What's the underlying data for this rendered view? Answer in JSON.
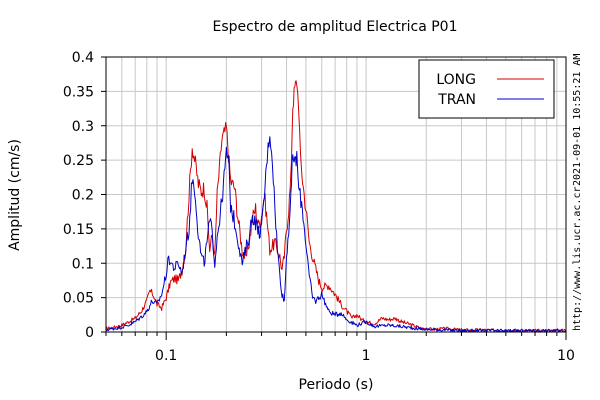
{
  "chart_data": {
    "type": "line",
    "title": "Espectro de amplitud Electrica P01",
    "xlabel": "Periodo (s)",
    "ylabel": "Amplitud (cm/s)",
    "x_scale": "log",
    "xlim": [
      0.05,
      10
    ],
    "ylim": [
      0,
      0.4
    ],
    "xticks": [
      {
        "v": 0.1,
        "label": "0.1"
      },
      {
        "v": 1,
        "label": "1"
      },
      {
        "v": 10,
        "label": "10"
      }
    ],
    "yticks": [
      {
        "v": 0,
        "label": "0"
      },
      {
        "v": 0.05,
        "label": "0.05"
      },
      {
        "v": 0.1,
        "label": "0.1"
      },
      {
        "v": 0.15,
        "label": "0.15"
      },
      {
        "v": 0.2,
        "label": "0.2"
      },
      {
        "v": 0.25,
        "label": "0.25"
      },
      {
        "v": 0.3,
        "label": "0.3"
      },
      {
        "v": 0.35,
        "label": "0.35"
      },
      {
        "v": 0.4,
        "label": "0.4"
      }
    ],
    "grid": true,
    "legend_position": "top-right",
    "series": [
      {
        "name": "LONG",
        "color": "#d40000",
        "points": [
          [
            0.05,
            0.005
          ],
          [
            0.055,
            0.007
          ],
          [
            0.06,
            0.01
          ],
          [
            0.065,
            0.015
          ],
          [
            0.07,
            0.02
          ],
          [
            0.075,
            0.03
          ],
          [
            0.08,
            0.045
          ],
          [
            0.083,
            0.06
          ],
          [
            0.087,
            0.052
          ],
          [
            0.09,
            0.04
          ],
          [
            0.095,
            0.035
          ],
          [
            0.1,
            0.05
          ],
          [
            0.105,
            0.072
          ],
          [
            0.11,
            0.078
          ],
          [
            0.115,
            0.075
          ],
          [
            0.12,
            0.09
          ],
          [
            0.125,
            0.12
          ],
          [
            0.13,
            0.2
          ],
          [
            0.135,
            0.27
          ],
          [
            0.14,
            0.245
          ],
          [
            0.145,
            0.215
          ],
          [
            0.15,
            0.205
          ],
          [
            0.155,
            0.21
          ],
          [
            0.16,
            0.18
          ],
          [
            0.165,
            0.12
          ],
          [
            0.17,
            0.14
          ],
          [
            0.175,
            0.11
          ],
          [
            0.18,
            0.2
          ],
          [
            0.19,
            0.28
          ],
          [
            0.2,
            0.297
          ],
          [
            0.21,
            0.22
          ],
          [
            0.22,
            0.21
          ],
          [
            0.23,
            0.16
          ],
          [
            0.24,
            0.12
          ],
          [
            0.25,
            0.105
          ],
          [
            0.26,
            0.13
          ],
          [
            0.27,
            0.165
          ],
          [
            0.28,
            0.18
          ],
          [
            0.29,
            0.155
          ],
          [
            0.3,
            0.17
          ],
          [
            0.31,
            0.2
          ],
          [
            0.32,
            0.16
          ],
          [
            0.33,
            0.12
          ],
          [
            0.35,
            0.13
          ],
          [
            0.37,
            0.11
          ],
          [
            0.38,
            0.09
          ],
          [
            0.39,
            0.11
          ],
          [
            0.4,
            0.15
          ],
          [
            0.41,
            0.18
          ],
          [
            0.42,
            0.22
          ],
          [
            0.43,
            0.33
          ],
          [
            0.44,
            0.355
          ],
          [
            0.45,
            0.365
          ],
          [
            0.46,
            0.33
          ],
          [
            0.47,
            0.25
          ],
          [
            0.49,
            0.2
          ],
          [
            0.5,
            0.18
          ],
          [
            0.52,
            0.13
          ],
          [
            0.55,
            0.1
          ],
          [
            0.58,
            0.075
          ],
          [
            0.6,
            0.065
          ],
          [
            0.65,
            0.068
          ],
          [
            0.7,
            0.055
          ],
          [
            0.75,
            0.04
          ],
          [
            0.8,
            0.03
          ],
          [
            0.85,
            0.02
          ],
          [
            0.9,
            0.025
          ],
          [
            0.95,
            0.018
          ],
          [
            1.0,
            0.015
          ],
          [
            1.1,
            0.012
          ],
          [
            1.2,
            0.02
          ],
          [
            1.3,
            0.018
          ],
          [
            1.4,
            0.02
          ],
          [
            1.5,
            0.015
          ],
          [
            1.7,
            0.01
          ],
          [
            1.9,
            0.005
          ],
          [
            2.2,
            0.004
          ],
          [
            2.5,
            0.005
          ],
          [
            3.0,
            0.003
          ],
          [
            4.0,
            0.003
          ],
          [
            5.0,
            0.002
          ],
          [
            7.0,
            0.002
          ],
          [
            10.0,
            0.003
          ]
        ]
      },
      {
        "name": "TRAN",
        "color": "#0000c8",
        "points": [
          [
            0.05,
            0.003
          ],
          [
            0.055,
            0.005
          ],
          [
            0.06,
            0.007
          ],
          [
            0.065,
            0.01
          ],
          [
            0.07,
            0.015
          ],
          [
            0.075,
            0.022
          ],
          [
            0.08,
            0.03
          ],
          [
            0.085,
            0.045
          ],
          [
            0.09,
            0.04
          ],
          [
            0.095,
            0.055
          ],
          [
            0.1,
            0.085
          ],
          [
            0.103,
            0.108
          ],
          [
            0.106,
            0.1
          ],
          [
            0.11,
            0.093
          ],
          [
            0.115,
            0.1
          ],
          [
            0.12,
            0.085
          ],
          [
            0.125,
            0.12
          ],
          [
            0.13,
            0.15
          ],
          [
            0.135,
            0.225
          ],
          [
            0.14,
            0.2
          ],
          [
            0.145,
            0.14
          ],
          [
            0.15,
            0.11
          ],
          [
            0.155,
            0.1
          ],
          [
            0.16,
            0.13
          ],
          [
            0.165,
            0.16
          ],
          [
            0.17,
            0.145
          ],
          [
            0.175,
            0.1
          ],
          [
            0.18,
            0.14
          ],
          [
            0.19,
            0.19
          ],
          [
            0.2,
            0.26
          ],
          [
            0.205,
            0.25
          ],
          [
            0.21,
            0.185
          ],
          [
            0.22,
            0.16
          ],
          [
            0.23,
            0.13
          ],
          [
            0.24,
            0.1
          ],
          [
            0.25,
            0.12
          ],
          [
            0.26,
            0.14
          ],
          [
            0.27,
            0.17
          ],
          [
            0.28,
            0.16
          ],
          [
            0.29,
            0.145
          ],
          [
            0.3,
            0.15
          ],
          [
            0.31,
            0.2
          ],
          [
            0.32,
            0.255
          ],
          [
            0.33,
            0.29
          ],
          [
            0.34,
            0.25
          ],
          [
            0.35,
            0.18
          ],
          [
            0.36,
            0.12
          ],
          [
            0.37,
            0.085
          ],
          [
            0.38,
            0.055
          ],
          [
            0.39,
            0.045
          ],
          [
            0.4,
            0.11
          ],
          [
            0.42,
            0.19
          ],
          [
            0.43,
            0.26
          ],
          [
            0.44,
            0.245
          ],
          [
            0.45,
            0.255
          ],
          [
            0.46,
            0.21
          ],
          [
            0.48,
            0.18
          ],
          [
            0.5,
            0.13
          ],
          [
            0.52,
            0.08
          ],
          [
            0.54,
            0.05
          ],
          [
            0.56,
            0.045
          ],
          [
            0.6,
            0.055
          ],
          [
            0.65,
            0.03
          ],
          [
            0.7,
            0.025
          ],
          [
            0.75,
            0.028
          ],
          [
            0.8,
            0.018
          ],
          [
            0.9,
            0.01
          ],
          [
            1.0,
            0.015
          ],
          [
            1.1,
            0.008
          ],
          [
            1.3,
            0.01
          ],
          [
            1.5,
            0.008
          ],
          [
            1.8,
            0.005
          ],
          [
            2.0,
            0.004
          ],
          [
            2.5,
            0.003
          ],
          [
            3.0,
            0.002
          ],
          [
            5.0,
            0.002
          ],
          [
            10.0,
            0.002
          ]
        ]
      }
    ]
  },
  "side_text": {
    "timestamp": "2021-09-01 10:55:21 AM",
    "url": "http://www.lis.ucr.ac.cr"
  }
}
